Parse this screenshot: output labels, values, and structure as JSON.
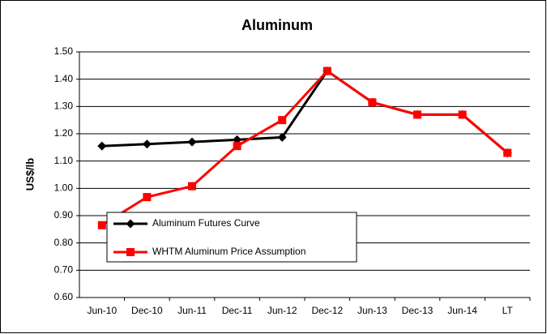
{
  "chart_data": {
    "type": "line",
    "title": "Aluminum",
    "y_label": "US$/lb",
    "categories": [
      "Jun-10",
      "Dec-10",
      "Jun-11",
      "Dec-11",
      "Jun-12",
      "Dec-12",
      "Jun-13",
      "Dec-13",
      "Jun-14",
      "LT"
    ],
    "series": [
      {
        "name": "Aluminum Futures Curve",
        "color": "#000000",
        "marker": "diamond",
        "values": [
          1.155,
          1.162,
          1.17,
          1.178,
          1.187,
          1.43,
          1.315,
          1.27,
          1.27,
          1.13
        ]
      },
      {
        "name": "WHTM Aluminum Price Assumption",
        "color": "#ff0000",
        "marker": "square",
        "values": [
          0.865,
          0.968,
          1.008,
          1.155,
          1.25,
          1.43,
          1.315,
          1.27,
          1.27,
          1.13
        ]
      }
    ],
    "ylim": [
      0.6,
      1.5
    ],
    "yticks": [
      {
        "value": 0.6,
        "label": "0.60"
      },
      {
        "value": 0.7,
        "label": "0.70"
      },
      {
        "value": 0.8,
        "label": "0.80"
      },
      {
        "value": 0.9,
        "label": "0.90"
      },
      {
        "value": 1.0,
        "label": "1.00"
      },
      {
        "value": 1.1,
        "label": "1.10"
      },
      {
        "value": 1.2,
        "label": "1.20"
      },
      {
        "value": 1.3,
        "label": "1.30"
      },
      {
        "value": 1.4,
        "label": "1.40"
      },
      {
        "value": 1.5,
        "label": "1.50"
      }
    ],
    "grid": true,
    "legend": "lower left"
  }
}
